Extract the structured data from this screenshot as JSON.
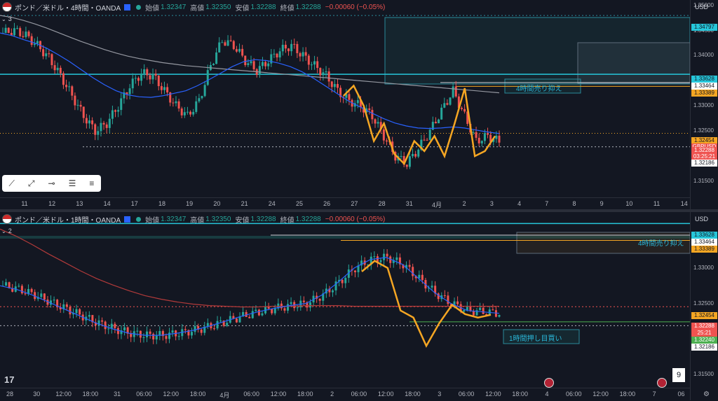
{
  "chart_data": [
    {
      "type": "line",
      "title": "ポンド／米ドル・4時間・OANDA",
      "indicator_count": "3",
      "ohlc": {
        "open_label": "始値",
        "open": "1.32347",
        "high_label": "高値",
        "high": "1.32350",
        "low_label": "安値",
        "low": "1.32288",
        "close_label": "終値",
        "close": "1.32288",
        "change": "−0.00060 (−0.05%)"
      },
      "currency": "USD",
      "price_ticks": [
        "1.35000",
        "1.34500",
        "1.34000",
        "1.33000",
        "1.32500",
        "1.31500"
      ],
      "price_tags": [
        {
          "value": "1.34797",
          "color": "#26c6da"
        },
        {
          "value": "1.33628",
          "color": "#26c6da"
        },
        {
          "value": "1.33464",
          "color": "#ffffff"
        },
        {
          "value": "1.33389",
          "color": "#f5a623"
        },
        {
          "value": "1.32454",
          "color": "#f5a623"
        },
        {
          "value": "GBPUSD",
          "color": "#ef5350"
        },
        {
          "value": "1.32288",
          "color": "#ef5350"
        },
        {
          "value": "03:25:21",
          "color": "#ef5350"
        },
        {
          "value": "1.32186",
          "color": "#ffffff"
        }
      ],
      "x_ticks": [
        "11",
        "12",
        "13",
        "14",
        "17",
        "18",
        "19",
        "20",
        "21",
        "24",
        "25",
        "26",
        "27",
        "28",
        "31",
        "4月",
        "2",
        "3",
        "4",
        "7",
        "8",
        "9",
        "10",
        "11",
        "14"
      ],
      "annotation": "4時間売り抑え",
      "ylim": [
        1.3125,
        1.3505
      ],
      "series": [
        {
          "values": [
            1.3445,
            1.345,
            1.344,
            1.342,
            1.3395,
            1.336,
            1.332,
            1.328,
            1.325,
            1.3265,
            1.33,
            1.334,
            1.3365,
            1.336,
            1.333,
            1.33,
            1.328,
            1.331,
            1.338,
            1.343,
            1.342,
            1.339,
            1.337,
            1.339,
            1.341,
            1.342,
            1.34,
            1.338,
            1.336,
            1.333,
            1.331,
            1.33,
            1.328,
            1.324,
            1.32,
            1.3185,
            1.3215,
            1.325,
            1.329,
            1.333,
            1.328,
            1.323,
            1.324,
            1.3229
          ]
        },
        {
          "values": [
            1.3445,
            1.344,
            1.3432,
            1.3425,
            1.3415,
            1.3402,
            1.3388,
            1.3372,
            1.3356,
            1.3342,
            1.333,
            1.3322,
            1.3318,
            1.3317,
            1.332,
            1.3325,
            1.333,
            1.334,
            1.3352,
            1.3365,
            1.3378,
            1.3388,
            1.3392,
            1.339,
            1.3385,
            1.3378,
            1.3368,
            1.3355,
            1.334,
            1.3325,
            1.331,
            1.3298,
            1.3286,
            1.3275,
            1.3266,
            1.326,
            1.3256,
            1.3255,
            1.3256,
            1.3258,
            1.3256,
            1.3252,
            1.3248,
            1.3245
          ]
        },
        {
          "values": [
            1.348,
            1.3476,
            1.347,
            1.3463,
            1.3455,
            1.3446,
            1.3437,
            1.3428,
            1.342,
            1.3412,
            1.3405,
            1.3399,
            1.3394,
            1.339,
            1.3386,
            1.3383,
            1.338,
            1.3378,
            1.3376,
            1.3374,
            1.3372,
            1.337,
            1.3368,
            1.3366,
            1.3364,
            1.3362,
            1.336,
            1.3358,
            1.3356,
            1.3354,
            1.3352,
            1.335,
            1.3348,
            1.3346,
            1.3344,
            1.3342,
            1.334,
            1.3338,
            1.3336,
            1.3334,
            1.3332,
            1.333,
            1.3328,
            1.3326
          ]
        },
        {
          "values": [
            1.332,
            1.334,
            1.33,
            1.323,
            1.3265,
            1.3205,
            1.3185,
            1.323,
            1.321,
            1.324,
            1.32,
            1.3265,
            1.3335,
            1.32,
            1.321,
            1.324
          ]
        }
      ]
    },
    {
      "type": "line",
      "title": "ポンド／米ドル・1時間・OANDA",
      "indicator_count": "2",
      "ohlc": {
        "open_label": "始値",
        "open": "1.32347",
        "high_label": "高値",
        "high": "1.32350",
        "low_label": "安値",
        "low": "1.32288",
        "close_label": "終値",
        "close": "1.32288",
        "change": "−0.00060 (−0.05%)"
      },
      "currency": "USD",
      "price_ticks": [
        "1.33000",
        "1.32500",
        "1.32000",
        "1.31500"
      ],
      "price_tags": [
        {
          "value": "1.33628",
          "color": "#26c6da"
        },
        {
          "value": "1.33464",
          "color": "#ffffff"
        },
        {
          "value": "1.33389",
          "color": "#f5a623"
        },
        {
          "value": "1.32454",
          "color": "#f5a623"
        },
        {
          "value": "1.32288",
          "color": "#ef5350"
        },
        {
          "value": "25:21",
          "color": "#ef5350"
        },
        {
          "value": "1.32240",
          "color": "#4caf50"
        },
        {
          "value": "1.32186",
          "color": "#ffffff"
        }
      ],
      "x_ticks": [
        "28",
        "30",
        "12:00",
        "18:00",
        "31",
        "06:00",
        "12:00",
        "18:00",
        "4月",
        "06:00",
        "12:00",
        "18:00",
        "2",
        "06:00",
        "12:00",
        "18:00",
        "3",
        "06:00",
        "12:00",
        "18:00",
        "4",
        "06:00",
        "12:00",
        "18:00",
        "7",
        "06"
      ],
      "annotations": [
        "4時間売り抑え",
        "1時間押し目買い"
      ],
      "page_badge": "9",
      "ylim": [
        1.3135,
        1.3375
      ],
      "series": [
        {
          "values": [
            1.3275,
            1.327,
            1.3262,
            1.3252,
            1.3242,
            1.3232,
            1.3222,
            1.3214,
            1.3208,
            1.3205,
            1.3205,
            1.3208,
            1.3212,
            1.3218,
            1.3225,
            1.3232,
            1.3238,
            1.3243,
            1.3247,
            1.325,
            1.3262,
            1.328,
            1.33,
            1.3312,
            1.3315,
            1.3305,
            1.3285,
            1.3265,
            1.325,
            1.324,
            1.3238,
            1.3236
          ]
        },
        {
          "values": [
            1.3355,
            1.3345,
            1.3333,
            1.332,
            1.3308,
            1.3296,
            1.3285,
            1.3276,
            1.3268,
            1.3261,
            1.3256,
            1.3252,
            1.3249,
            1.3247,
            1.3246,
            1.3245,
            1.3245,
            1.3246,
            1.3246,
            1.3247,
            1.3247,
            1.3247,
            1.3246,
            1.3246,
            1.3246,
            1.3246,
            1.3246,
            1.3246,
            1.3246,
            1.3246,
            1.3246,
            1.3246
          ]
        },
        {
          "values": [
            1.3295,
            1.331,
            1.33,
            1.324,
            1.323,
            1.319,
            1.3222,
            1.3248,
            1.3235,
            1.323,
            1.3234
          ]
        }
      ]
    }
  ],
  "toolbar": {
    "icons": [
      "trend-line-icon",
      "ray-icon",
      "horizontal-ray-icon",
      "fib-icon",
      "parallel-lines-icon"
    ]
  }
}
